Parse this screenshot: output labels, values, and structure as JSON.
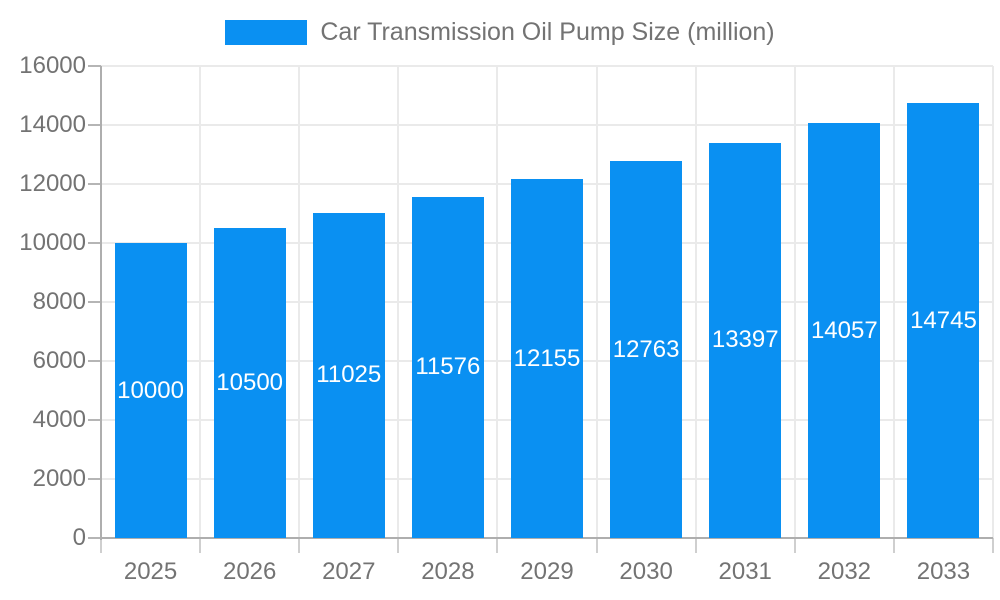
{
  "legend": {
    "label": "Car Transmission Oil Pump Size (million)"
  },
  "chart_data": {
    "type": "bar",
    "title": "Car Transmission Oil Pump Size (million)",
    "categories": [
      "2025",
      "2026",
      "2027",
      "2028",
      "2029",
      "2030",
      "2031",
      "2032",
      "2033"
    ],
    "values": [
      10000,
      10500,
      11025,
      11576,
      12155,
      12763,
      13397,
      14057,
      14745
    ],
    "xlabel": "",
    "ylabel": "",
    "ylim": [
      0,
      16000
    ],
    "yticks": [
      0,
      2000,
      4000,
      6000,
      8000,
      10000,
      12000,
      14000,
      16000
    ],
    "grid": true,
    "legend_position": "top-center",
    "value_label_position": "inside-center",
    "colors": {
      "bar": "#0a90f2",
      "value_label": "#ffffff",
      "axis_label": "#737373",
      "legend_text": "#737373",
      "gridline": "#eaeaea",
      "axis_line": "#aeaeae",
      "background": "#ffffff"
    }
  }
}
